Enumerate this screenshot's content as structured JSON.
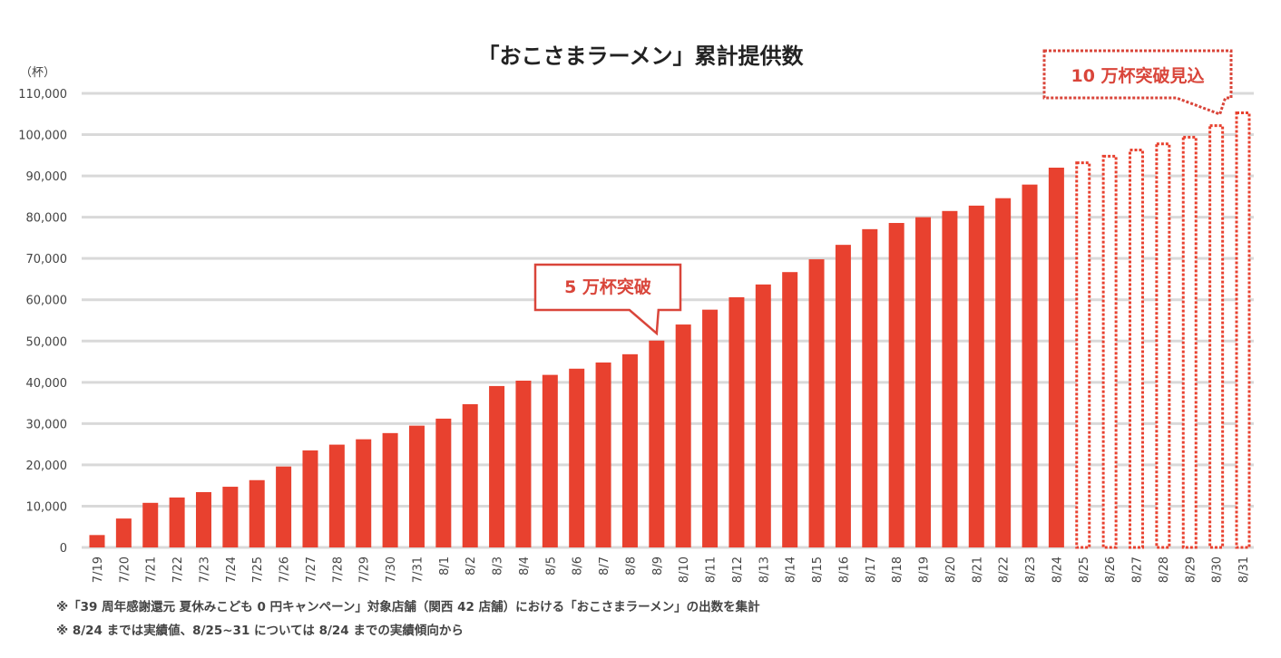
{
  "chart_data": {
    "type": "bar",
    "title": "「おこさまラーメン」累計提供数",
    "ylabel": "（杯）",
    "ylim": [
      0,
      110000
    ],
    "yticks": [
      "0",
      "10,000",
      "20,000",
      "30,000",
      "40,000",
      "50,000",
      "60,000",
      "70,000",
      "80,000",
      "90,000",
      "100,000",
      "110,000"
    ],
    "grid": true,
    "categories": [
      "7/19",
      "7/20",
      "7/21",
      "7/22",
      "7/23",
      "7/24",
      "7/25",
      "7/26",
      "7/27",
      "7/28",
      "7/29",
      "7/30",
      "7/31",
      "8/1",
      "8/2",
      "8/3",
      "8/4",
      "8/5",
      "8/6",
      "8/7",
      "8/8",
      "8/9",
      "8/10",
      "8/11",
      "8/12",
      "8/13",
      "8/14",
      "8/15",
      "8/16",
      "8/17",
      "8/18",
      "8/19",
      "8/20",
      "8/21",
      "8/22",
      "8/23",
      "8/24",
      "8/25",
      "8/26",
      "8/27",
      "8/28",
      "8/29",
      "8/30",
      "8/31"
    ],
    "values": [
      3000,
      7000,
      10800,
      12100,
      13400,
      14700,
      16300,
      19600,
      23500,
      24900,
      26200,
      27700,
      29500,
      31200,
      34700,
      39100,
      40400,
      41800,
      43300,
      44800,
      46800,
      50100,
      54000,
      57600,
      60600,
      63700,
      66700,
      69800,
      73300,
      77100,
      78600,
      80000,
      81500,
      82800,
      84600,
      87900,
      92000,
      93500,
      95100,
      96600,
      98100,
      99700,
      102500,
      105600
    ],
    "forecast_from": "8/25",
    "colors": {
      "bar": "#e8412f",
      "callout": "#d9453a",
      "grid": "#d9d9d9"
    },
    "annotations": [
      {
        "text": "5 万杯突破",
        "target": "8/9",
        "style": "solid"
      },
      {
        "text": "10 万杯突破見込",
        "target": "8/30",
        "style": "dotted"
      }
    ]
  },
  "notes": [
    "※「39 周年感謝還元  夏休みこども 0 円キャンペーン」対象店舗（関西 42 店舗）における「おこさまラーメン」の出数を集計",
    "※  8/24 までは実績値、8/25~31 については 8/24 までの実績傾向から"
  ]
}
